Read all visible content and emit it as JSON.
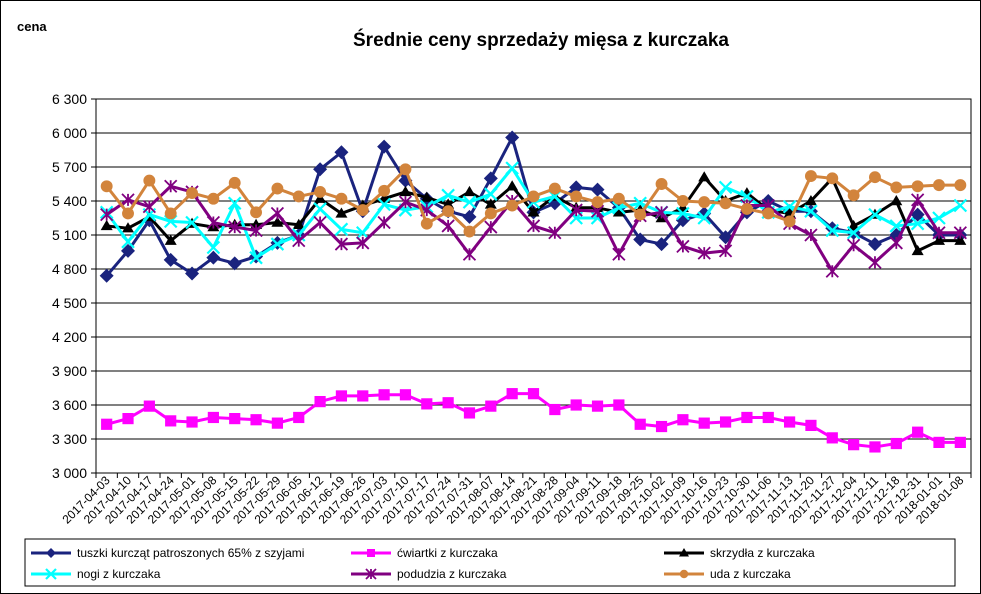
{
  "chart_data": {
    "type": "line",
    "title": "Średnie ceny sprzedaży mięsa z kurczaka",
    "ylabel": "cena",
    "ylim": [
      3000,
      6300
    ],
    "yticks": [
      3000,
      3300,
      3600,
      3900,
      4200,
      4500,
      4800,
      5100,
      5400,
      5700,
      6000,
      6300
    ],
    "ytick_labels": [
      "3 000",
      "3 300",
      "3 600",
      "3 900",
      "4 200",
      "4 500",
      "4 800",
      "5 100",
      "5 400",
      "5 700",
      "6 000",
      "6 300"
    ],
    "grid": "horizontal",
    "legend_position": "bottom",
    "x": [
      "2017-04-03",
      "2017-04-10",
      "2017-04-17",
      "2017-04-24",
      "2017-05-01",
      "2017-05-08",
      "2017-05-15",
      "2017-05-22",
      "2017-05-29",
      "2017-06-05",
      "2017-06-12",
      "2017-06-19",
      "2017-06-26",
      "2017-07-03",
      "2017-07-10",
      "2017-07-17",
      "2017-07-24",
      "2017-07-31",
      "2017-08-07",
      "2017-08-14",
      "2017-08-21",
      "2017-08-28",
      "2017-09-04",
      "2017-09-11",
      "2017-09-18",
      "2017-09-25",
      "2017-10-02",
      "2017-10-09",
      "2017-10-16",
      "2017-10-23",
      "2017-10-30",
      "2017-11-06",
      "2017-11-13",
      "2017-11-20",
      "2017-11-27",
      "2017-12-04",
      "2017-12-11",
      "2017-12-18",
      "2017-12-31",
      "2018-01-01",
      "2018-01-08"
    ],
    "series": [
      {
        "name": "tuszki kurcząt patroszonych 65% z szyjami",
        "color": "#1a237e",
        "marker": "diamond",
        "values": [
          4740,
          4960,
          5230,
          4880,
          4760,
          4900,
          4850,
          4910,
          5030,
          5100,
          5680,
          5830,
          5310,
          5880,
          5580,
          5420,
          5310,
          5260,
          5600,
          5960,
          5300,
          5380,
          5520,
          5500,
          5340,
          5060,
          5020,
          5230,
          5290,
          5080,
          5300,
          5400,
          5310,
          5310,
          5160,
          5120,
          5020,
          5100,
          5280,
          5100,
          5100
        ]
      },
      {
        "name": "ćwiartki z kurczaka",
        "color": "#ff00ff",
        "marker": "square",
        "values": [
          3430,
          3480,
          3590,
          3460,
          3450,
          3490,
          3480,
          3470,
          3440,
          3490,
          3630,
          3680,
          3680,
          3690,
          3690,
          3610,
          3620,
          3530,
          3590,
          3700,
          3700,
          3560,
          3600,
          3590,
          3600,
          3430,
          3410,
          3470,
          3440,
          3450,
          3490,
          3490,
          3450,
          3420,
          3310,
          3250,
          3230,
          3260,
          3360,
          3270,
          3270
        ]
      },
      {
        "name": "skrzydła z kurczaka",
        "color": "#000000",
        "marker": "triangle",
        "values": [
          5180,
          5160,
          5260,
          5050,
          5200,
          5170,
          5190,
          5190,
          5210,
          5190,
          5420,
          5290,
          5360,
          5420,
          5480,
          5430,
          5370,
          5480,
          5370,
          5530,
          5300,
          5440,
          5340,
          5340,
          5300,
          5320,
          5250,
          5340,
          5610,
          5400,
          5470,
          5320,
          5290,
          5400,
          5600,
          5180,
          5280,
          5400,
          4960,
          5050,
          5050
        ]
      },
      {
        "name": "nogi z kurczaka",
        "color": "#00ffff",
        "marker": "x",
        "values": [
          5300,
          5040,
          5280,
          5220,
          5210,
          4990,
          5380,
          4900,
          5020,
          5100,
          5330,
          5150,
          5120,
          5370,
          5320,
          5350,
          5450,
          5390,
          5460,
          5690,
          5390,
          5440,
          5250,
          5250,
          5340,
          5380,
          5300,
          5290,
          5250,
          5520,
          5440,
          5300,
          5350,
          5310,
          5140,
          5120,
          5280,
          5180,
          5200,
          5250,
          5360
        ]
      },
      {
        "name": "podudzia z kurczaka",
        "color": "#800080",
        "marker": "star",
        "values": [
          5280,
          5410,
          5350,
          5530,
          5480,
          5210,
          5170,
          5140,
          5290,
          5050,
          5210,
          5020,
          5030,
          5210,
          5390,
          5320,
          5180,
          4930,
          5170,
          5400,
          5180,
          5120,
          5320,
          5310,
          4930,
          5270,
          5300,
          5000,
          4940,
          4960,
          5360,
          5360,
          5200,
          5100,
          4780,
          5010,
          4860,
          5030,
          5410,
          5120,
          5120
        ]
      },
      {
        "name": "uda z kurczaka",
        "color": "#d2843c",
        "marker": "circle",
        "values": [
          5530,
          5290,
          5580,
          5290,
          5470,
          5420,
          5560,
          5300,
          5510,
          5440,
          5480,
          5420,
          5320,
          5490,
          5680,
          5200,
          5310,
          5130,
          5290,
          5360,
          5440,
          5510,
          5440,
          5390,
          5420,
          5280,
          5550,
          5400,
          5390,
          5380,
          5330,
          5290,
          5220,
          5620,
          5600,
          5450,
          5610,
          5520,
          5530,
          5540,
          5540
        ]
      }
    ]
  }
}
